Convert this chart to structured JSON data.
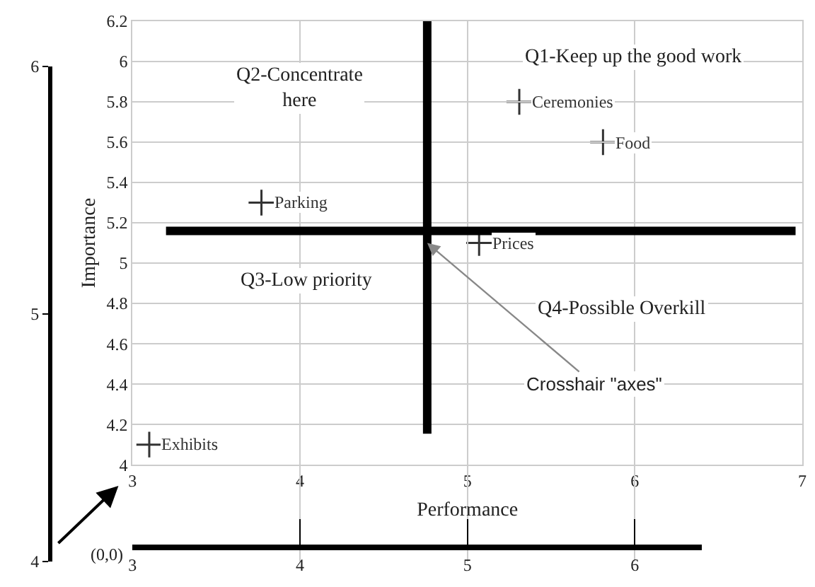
{
  "chart_data": {
    "type": "scatter",
    "xlabel": "Performance",
    "ylabel": "Importance",
    "xlim": [
      3,
      7
    ],
    "xticks": [
      3,
      4,
      5,
      6,
      7
    ],
    "ylim": [
      4,
      6.2
    ],
    "yticks": [
      4,
      4.2,
      4.4,
      4.6,
      4.8,
      5,
      5.2,
      5.4,
      5.6,
      5.8,
      6,
      6.2
    ],
    "x2lim": [
      3,
      6.4
    ],
    "x2ticks": [
      3,
      4,
      5,
      6
    ],
    "y2lim": [
      4,
      6
    ],
    "y2ticks": [
      4,
      5,
      6
    ],
    "grid": true,
    "legend": false,
    "marker": "cross",
    "series": [
      {
        "name": "Ceremonies",
        "color": "#333333",
        "x": [
          5.31
        ],
        "values": [
          5.8
        ]
      },
      {
        "name": "Food",
        "color": "#333333",
        "x": [
          5.81
        ],
        "values": [
          5.6
        ]
      },
      {
        "name": "Parking",
        "color": "#333333",
        "x": [
          3.77
        ],
        "values": [
          5.3
        ]
      },
      {
        "name": "Prices",
        "color": "#333333",
        "x": [
          5.07
        ],
        "values": [
          5.1
        ]
      },
      {
        "name": "Exhibits",
        "color": "#333333",
        "x": [
          3.1
        ],
        "values": [
          4.1
        ]
      }
    ],
    "ref_lines": [
      {
        "axis": "x",
        "value": 4.76,
        "color": "#000000"
      },
      {
        "axis": "y",
        "value": 5.16,
        "color": "#000000"
      }
    ],
    "annotations": [
      "Q1-Keep up the good work",
      "Q2-Concentrate\nhere",
      "Q3-Low priority",
      "Q4-Possible Overkill",
      {
        "text": "Crosshair \"axes\"",
        "x": 4.76,
        "y": 5.1
      },
      "(0,0)"
    ]
  }
}
